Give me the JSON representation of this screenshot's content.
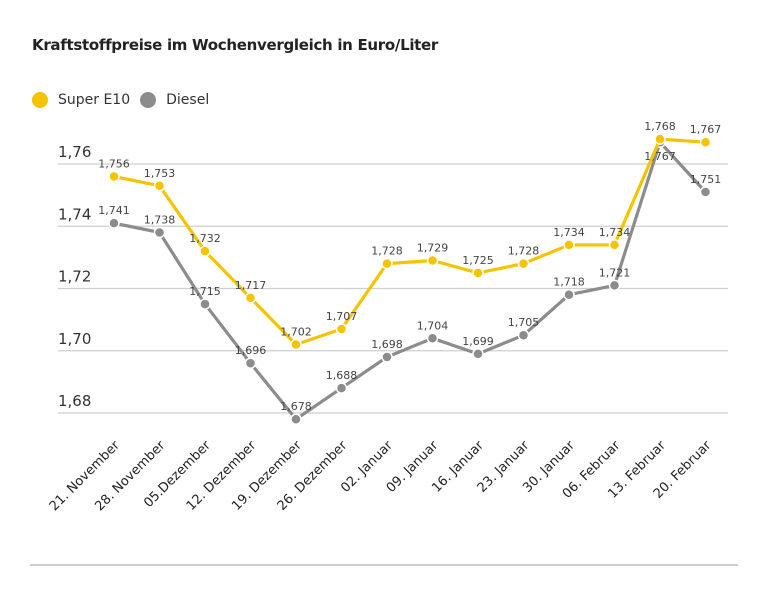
{
  "chart_data": {
    "type": "line",
    "title": "Kraftstoffpreise im Wochenvergleich in Euro/Liter",
    "categories": [
      "21. November",
      "28. November",
      "05.Dezember",
      "12. Dezember",
      "19. Dezember",
      "26. Dezember",
      "02. Januar",
      "09. Januar",
      "16. Januar",
      "23. Januar",
      "30. Januar",
      "06. Februar",
      "13. Februar",
      "20. Februar"
    ],
    "series": [
      {
        "name": "Super E10",
        "color": "#f5c400",
        "values": [
          1.756,
          1.753,
          1.732,
          1.717,
          1.702,
          1.707,
          1.728,
          1.729,
          1.725,
          1.728,
          1.734,
          1.734,
          1.768,
          1.767
        ]
      },
      {
        "name": "Diesel",
        "color": "#8c8c8c",
        "values": [
          1.741,
          1.738,
          1.715,
          1.696,
          1.678,
          1.688,
          1.698,
          1.704,
          1.699,
          1.705,
          1.718,
          1.721,
          1.767,
          1.751
        ]
      }
    ],
    "yticks": [
      "1,68",
      "1,70",
      "1,72",
      "1,74",
      "1,76"
    ],
    "ytick_values": [
      1.68,
      1.7,
      1.72,
      1.74,
      1.76
    ],
    "ylim": [
      1.68,
      1.76
    ],
    "grid": true,
    "legend": "top-left",
    "decimal_separator": ","
  }
}
